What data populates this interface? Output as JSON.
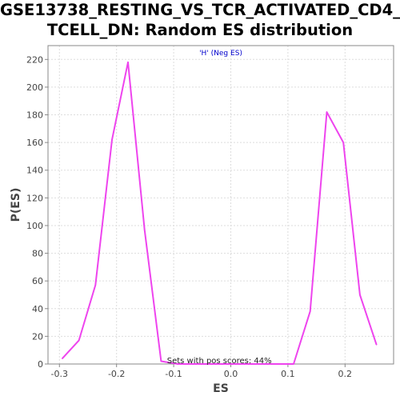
{
  "chart_data": {
    "type": "line",
    "title_lines": [
      "GSE13738_RESTING_VS_TCR_ACTIVATED_CD4_",
      "TCELL_DN: Random ES distribution"
    ],
    "xlabel": "ES",
    "ylabel": "P(ES)",
    "xlim": [
      -0.32,
      0.285
    ],
    "ylim": [
      0,
      230
    ],
    "xticks": [
      -0.3,
      -0.2,
      -0.1,
      0.0,
      0.1,
      0.2
    ],
    "xtick_labels": [
      "-0.3",
      "-0.2",
      "-0.1",
      "0.0",
      "0.1",
      "0.2"
    ],
    "yticks": [
      0,
      20,
      40,
      60,
      80,
      100,
      120,
      140,
      160,
      180,
      200,
      220
    ],
    "ytick_labels": [
      "0",
      "20",
      "40",
      "60",
      "80",
      "100",
      "120",
      "140",
      "160",
      "180",
      "200",
      "220"
    ],
    "grid": true,
    "legend": "'H' (Neg ES)",
    "legend_position": "top-center",
    "annotation": "Sets with pos scores: 44%",
    "line_color": "#ee44ee",
    "series": [
      {
        "x": [
          -0.295,
          -0.266,
          -0.237,
          -0.208,
          -0.18,
          -0.151,
          -0.122,
          -0.093,
          -0.064,
          -0.035,
          -0.006,
          0.023,
          0.052,
          0.081,
          0.11,
          0.139,
          0.168,
          0.197,
          0.226,
          0.255
        ],
        "values": [
          4,
          17,
          57,
          162,
          218,
          97,
          2,
          0,
          0,
          0,
          0,
          0,
          0,
          0,
          0,
          38,
          182,
          160,
          50,
          14
        ]
      }
    ]
  }
}
